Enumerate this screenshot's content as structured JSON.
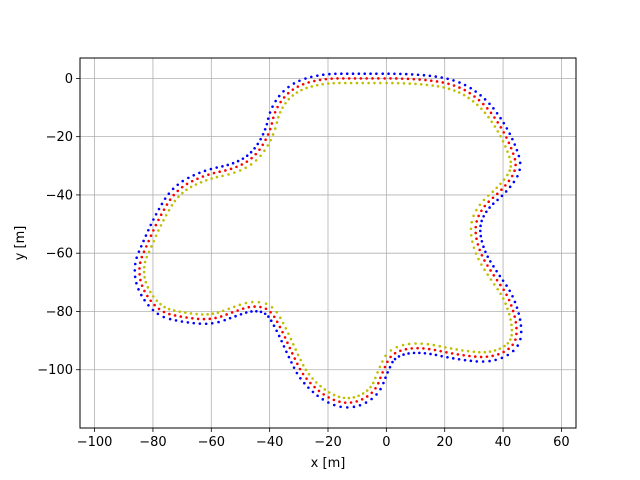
{
  "chart_data": {
    "type": "scatter",
    "title": "",
    "xlabel": "x [m]",
    "ylabel": "y [m]",
    "xlim": [
      -105,
      65
    ],
    "ylim": [
      -120,
      7
    ],
    "xticks": [
      -100,
      -80,
      -60,
      -40,
      -20,
      0,
      20,
      40,
      60
    ],
    "yticks": [
      0,
      -20,
      -40,
      -60,
      -80,
      -100
    ],
    "xtick_labels": [
      "−100",
      "−80",
      "−60",
      "−40",
      "−20",
      "0",
      "20",
      "40",
      "60"
    ],
    "ytick_labels": [
      "0",
      "−20",
      "−40",
      "−60",
      "−80",
      "−100"
    ],
    "grid": true,
    "legend": "none",
    "centerline": [
      [
        -10,
        0
      ],
      [
        10,
        0
      ],
      [
        24,
        -2
      ],
      [
        33,
        -8
      ],
      [
        39,
        -16
      ],
      [
        43,
        -24
      ],
      [
        45,
        -31
      ],
      [
        40,
        -38
      ],
      [
        33,
        -44
      ],
      [
        30,
        -51
      ],
      [
        32,
        -60
      ],
      [
        37,
        -68
      ],
      [
        42,
        -75
      ],
      [
        45,
        -85
      ],
      [
        44,
        -92
      ],
      [
        36,
        -96
      ],
      [
        25,
        -95
      ],
      [
        11,
        -92
      ],
      [
        2,
        -94
      ],
      [
        -1,
        -100
      ],
      [
        -4,
        -108
      ],
      [
        -12,
        -112
      ],
      [
        -20,
        -110
      ],
      [
        -28,
        -103
      ],
      [
        -32,
        -95
      ],
      [
        -36,
        -86
      ],
      [
        -40,
        -79
      ],
      [
        -46,
        -78
      ],
      [
        -52,
        -80
      ],
      [
        -60,
        -83
      ],
      [
        -70,
        -82
      ],
      [
        -78,
        -80
      ],
      [
        -84,
        -72
      ],
      [
        -85,
        -64
      ],
      [
        -82,
        -57
      ],
      [
        -78,
        -48
      ],
      [
        -72,
        -38
      ],
      [
        -62,
        -33
      ],
      [
        -52,
        -31
      ],
      [
        -45,
        -27
      ],
      [
        -40,
        -19
      ],
      [
        -38,
        -10
      ],
      [
        -32,
        -3
      ],
      [
        -22,
        0
      ],
      [
        -10,
        0
      ]
    ],
    "series": [
      {
        "color": "#0000ff",
        "offset_m": -1.6
      },
      {
        "color": "#ff0000",
        "offset_m": 0.0
      },
      {
        "color": "#bfbf00",
        "offset_m": 1.6
      }
    ]
  }
}
